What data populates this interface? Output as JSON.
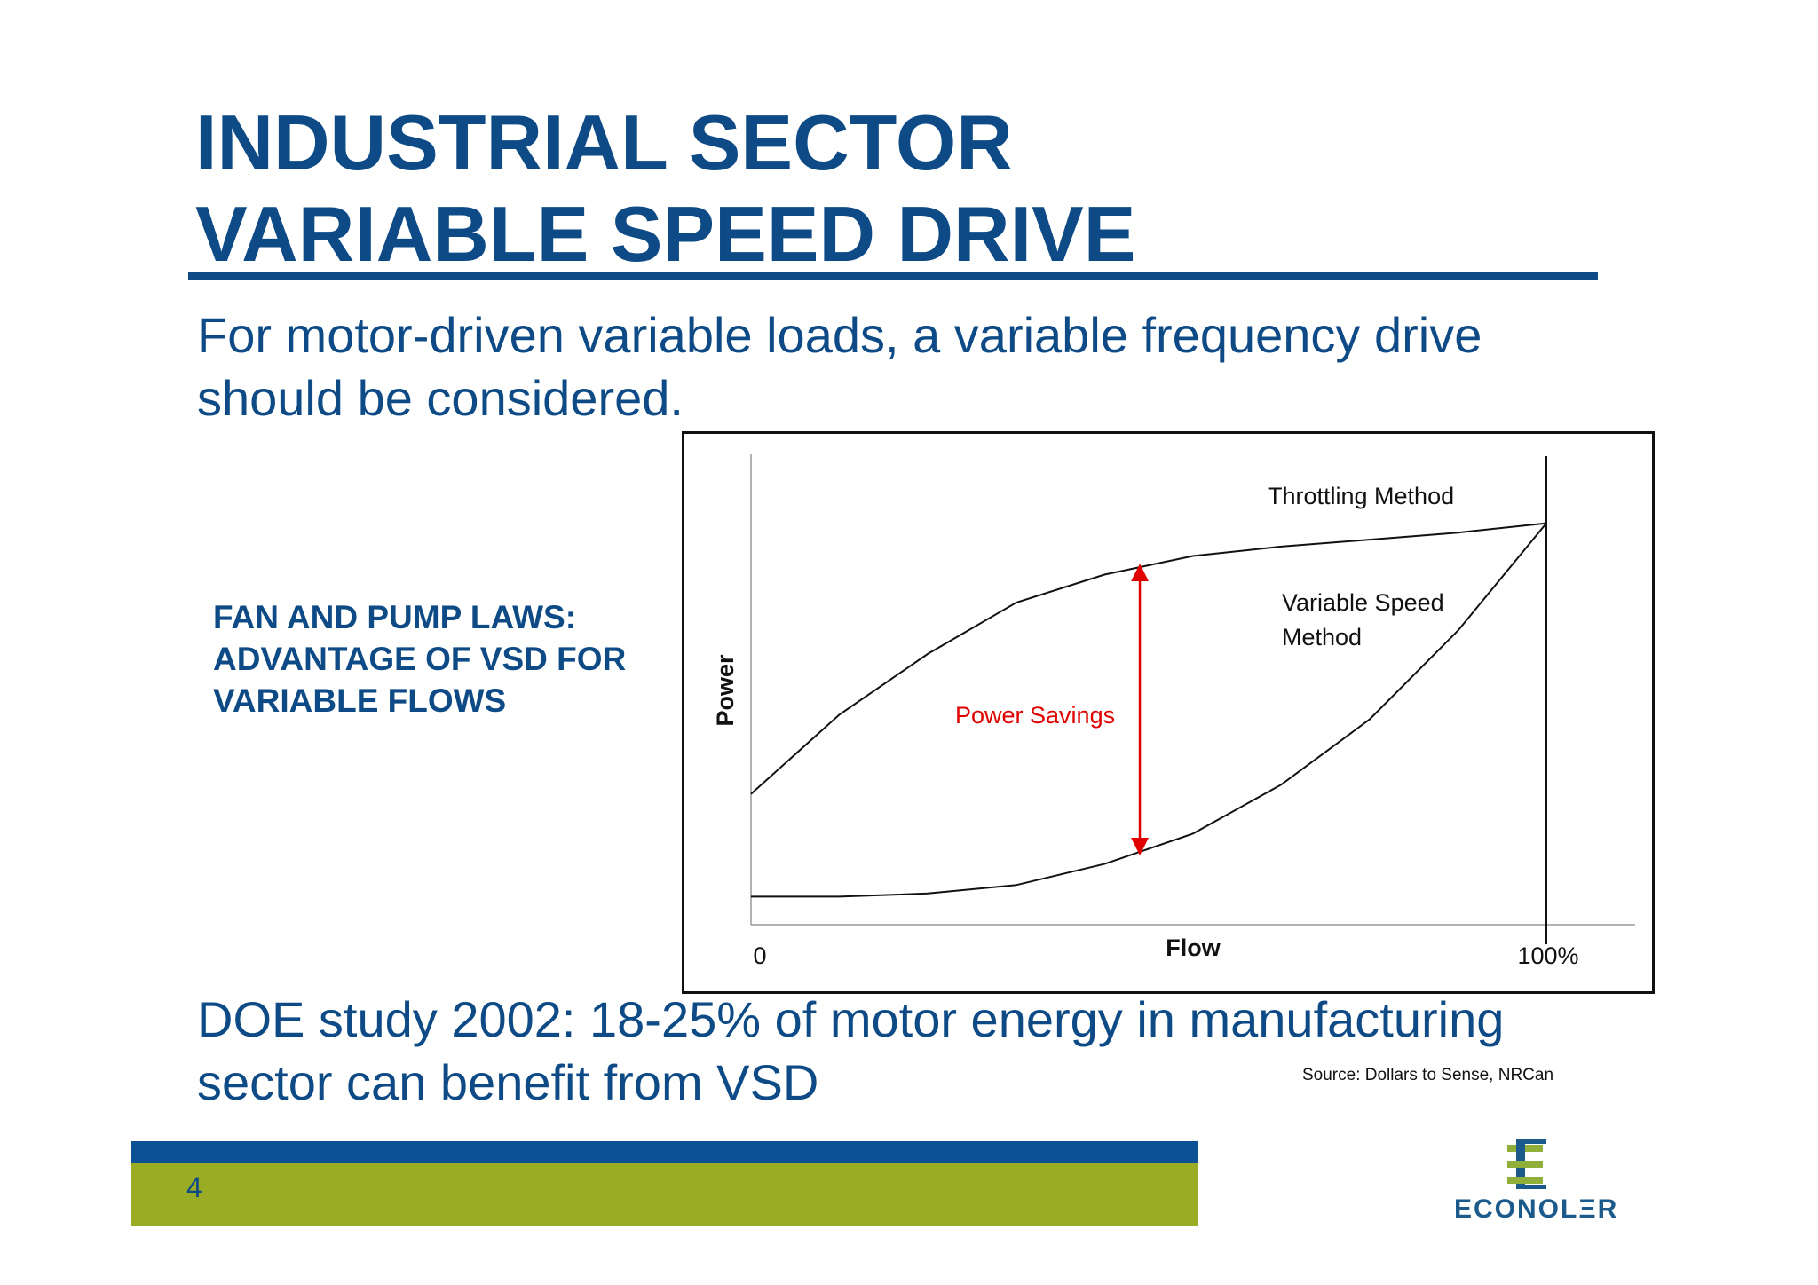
{
  "slide": {
    "title_line1": "INDUSTRIAL SECTOR",
    "title_line2": "VARIABLE SPEED DRIVE",
    "intro_line1": "For motor-driven variable loads, a variable frequency drive",
    "intro_line2": "should be considered.",
    "side_heading_line1": "FAN AND PUMP LAWS:",
    "side_heading_line2": "ADVANTAGE OF VSD FOR",
    "side_heading_line3": "VARIABLE FLOWS",
    "doe_line1": "DOE study 2002: 18-25% of motor energy in manufacturing",
    "doe_line2": "sector can benefit from VSD",
    "source": "Source: Dollars to Sense, NRCan",
    "page_number": "4",
    "logo_text": "ECONOLΞR",
    "colors": {
      "title_blue": "#0e4b86",
      "band_blue": "#0c5193",
      "band_green": "#9aac24",
      "savings_red": "#e00000"
    }
  },
  "chart_data": {
    "type": "line",
    "xlabel": "Flow",
    "ylabel": "Power",
    "x_tick_labels": [
      "0",
      "100%"
    ],
    "x": [
      0,
      10,
      20,
      30,
      40,
      50,
      60,
      70,
      80,
      90
    ],
    "series": [
      {
        "name": "Throttling Method",
        "values": [
          28,
          45,
          58,
          69,
          75,
          79,
          81,
          82.5,
          84,
          86
        ]
      },
      {
        "name": "Variable Speed Method",
        "values": [
          6,
          6,
          6.7,
          8.5,
          13,
          19.5,
          30,
          44,
          63,
          86
        ]
      }
    ],
    "annotation": {
      "label": "Power Savings",
      "x": 44,
      "color": "#e00000"
    },
    "ylim": [
      0,
      100
    ]
  }
}
